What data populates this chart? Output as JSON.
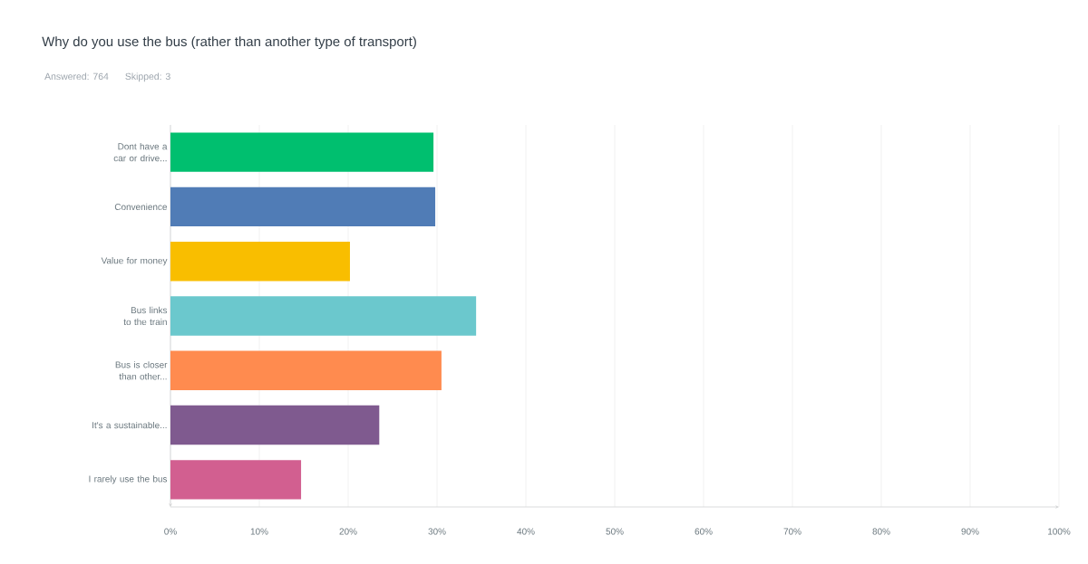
{
  "chart_data": {
    "type": "bar",
    "orientation": "horizontal",
    "title": "Why do you use the bus (rather than another type of transport)",
    "subtitle": "Answered: 764    Skipped: 3",
    "categories": [
      "Dont have a car or drive...",
      "Convenience",
      "Value for money",
      "Bus links to the train",
      "Bus is closer than other...",
      "It's a sustainable...",
      "I rarely use the bus"
    ],
    "values": [
      29.6,
      29.8,
      20.2,
      34.4,
      30.5,
      23.5,
      14.7
    ],
    "colors": [
      "#00bf6f",
      "#507cb6",
      "#f9be00",
      "#6bc8cd",
      "#ff8b4f",
      "#7f5a8f",
      "#d25f90"
    ],
    "xlim": [
      0,
      100
    ],
    "xticks": [
      {
        "value": 0,
        "label": "0%"
      },
      {
        "value": 10,
        "label": "10%"
      },
      {
        "value": 20,
        "label": "20%"
      },
      {
        "value": 30,
        "label": "30%"
      },
      {
        "value": 40,
        "label": "40%"
      },
      {
        "value": 50,
        "label": "50%"
      },
      {
        "value": 60,
        "label": "60%"
      },
      {
        "value": 70,
        "label": "70%"
      },
      {
        "value": 80,
        "label": "80%"
      },
      {
        "value": 90,
        "label": "90%"
      },
      {
        "value": 100,
        "label": "100%"
      }
    ],
    "grid": "x"
  }
}
